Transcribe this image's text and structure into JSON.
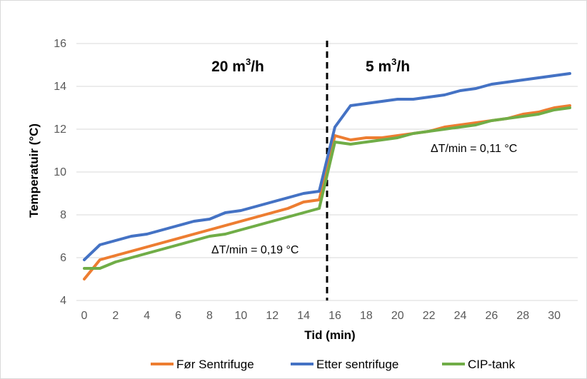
{
  "chart_data": {
    "type": "line",
    "xlabel": "Tid (min)",
    "ylabel": "Temperatuir (°C)",
    "xlim": [
      -0.5,
      31.5
    ],
    "ylim": [
      4,
      16
    ],
    "x_ticks": [
      0,
      2,
      4,
      6,
      8,
      10,
      12,
      14,
      16,
      18,
      20,
      22,
      24,
      26,
      28,
      30
    ],
    "y_ticks": [
      4,
      6,
      8,
      10,
      12,
      14,
      16
    ],
    "grid": "horizontal",
    "legend_position": "bottom",
    "x": [
      0,
      1,
      2,
      3,
      4,
      5,
      6,
      7,
      8,
      9,
      10,
      11,
      12,
      13,
      14,
      15,
      16,
      17,
      18,
      19,
      20,
      21,
      22,
      23,
      24,
      25,
      26,
      27,
      28,
      29,
      30,
      31
    ],
    "series": [
      {
        "name": "Før Sentrifuge",
        "color": "#ed7d31",
        "values": [
          5.0,
          5.9,
          6.1,
          6.3,
          6.5,
          6.7,
          6.9,
          7.1,
          7.3,
          7.5,
          7.7,
          7.9,
          8.1,
          8.3,
          8.6,
          8.7,
          11.7,
          11.5,
          11.6,
          11.6,
          11.7,
          11.8,
          11.9,
          12.1,
          12.2,
          12.3,
          12.4,
          12.5,
          12.7,
          12.8,
          13.0,
          13.1
        ]
      },
      {
        "name": "Etter sentrifuge",
        "color": "#4472c4",
        "values": [
          5.9,
          6.6,
          6.8,
          7.0,
          7.1,
          7.3,
          7.5,
          7.7,
          7.8,
          8.1,
          8.2,
          8.4,
          8.6,
          8.8,
          9.0,
          9.1,
          12.1,
          13.1,
          13.2,
          13.3,
          13.4,
          13.4,
          13.5,
          13.6,
          13.8,
          13.9,
          14.1,
          14.2,
          14.3,
          14.4,
          14.5,
          14.6
        ]
      },
      {
        "name": "CIP-tank",
        "color": "#70ad47",
        "values": [
          5.5,
          5.5,
          5.8,
          6.0,
          6.2,
          6.4,
          6.6,
          6.8,
          7.0,
          7.1,
          7.3,
          7.5,
          7.7,
          7.9,
          8.1,
          8.3,
          11.4,
          11.3,
          11.4,
          11.5,
          11.6,
          11.8,
          11.9,
          12.0,
          12.1,
          12.2,
          12.4,
          12.5,
          12.6,
          12.7,
          12.9,
          13.0
        ]
      }
    ],
    "divider_x": 15.5,
    "annotations": {
      "region_left": "20 m",
      "region_left_suffix": "/h",
      "region_right": "5 m",
      "region_right_suffix": "/h",
      "superscript": "3",
      "slope_left": "ΔT/min = 0,19 °C",
      "slope_right": "ΔT/min = 0,11 °C"
    }
  }
}
